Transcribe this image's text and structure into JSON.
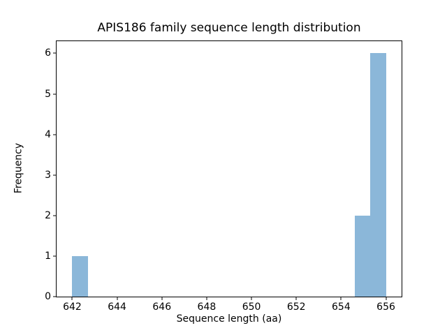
{
  "figure": {
    "title": "APIS186 family sequence length distribution",
    "xlabel": "Sequence length (aa)",
    "ylabel": "Frequency"
  },
  "chart_data": {
    "type": "bar",
    "subtype": "histogram",
    "title": "APIS186 family sequence length distribution",
    "xlabel": "Sequence length (aa)",
    "ylabel": "Frequency",
    "xlim": [
      641.3,
      656.7
    ],
    "ylim": [
      0,
      6.3
    ],
    "x_ticks": [
      642,
      644,
      646,
      648,
      650,
      652,
      654,
      656
    ],
    "y_ticks": [
      0,
      1,
      2,
      3,
      4,
      5,
      6
    ],
    "bin_width": 0.7,
    "bins": [
      {
        "start": 642.0,
        "end": 642.7,
        "count": 1
      },
      {
        "start": 654.6,
        "end": 655.3,
        "count": 2
      },
      {
        "start": 655.3,
        "end": 656.0,
        "count": 6
      }
    ],
    "bar_color": "#8bb7d9",
    "grid": false,
    "legend": false,
    "background_color": "#ffffff",
    "axis_color": "#000000"
  }
}
